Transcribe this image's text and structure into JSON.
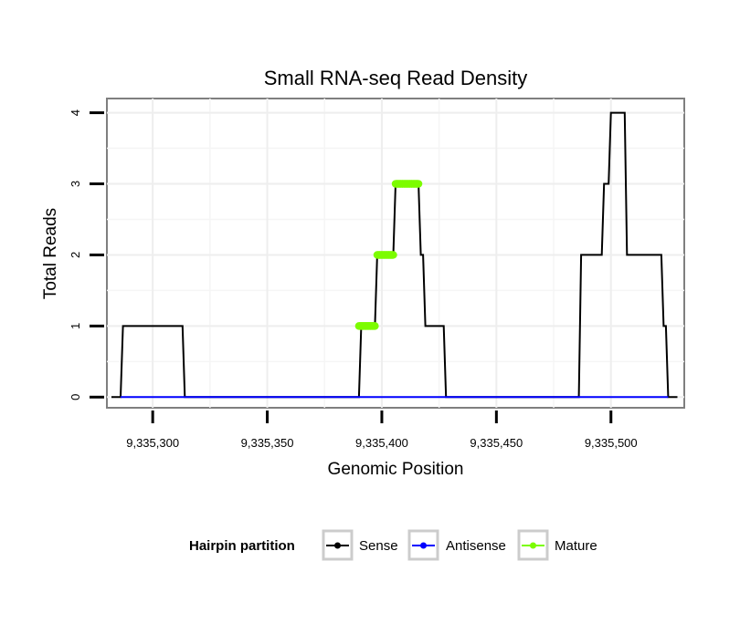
{
  "chart_data": {
    "type": "line",
    "title": "Small RNA-seq Read Density",
    "xlabel": "Genomic Position",
    "ylabel": "Total Reads",
    "xlim": [
      9335280,
      9335532
    ],
    "ylim": [
      -0.15,
      4.2
    ],
    "x_ticks": [
      {
        "value": 9335300,
        "label": "9,335,300"
      },
      {
        "value": 9335350,
        "label": "9,335,350"
      },
      {
        "value": 9335400,
        "label": "9,335,400"
      },
      {
        "value": 9335450,
        "label": "9,335,450"
      },
      {
        "value": 9335500,
        "label": "9,335,500"
      }
    ],
    "y_ticks": [
      {
        "value": 0,
        "label": "0"
      },
      {
        "value": 1,
        "label": "1"
      },
      {
        "value": 2,
        "label": "2"
      },
      {
        "value": 3,
        "label": "3"
      },
      {
        "value": 4,
        "label": "4"
      }
    ],
    "grid": true,
    "legend": {
      "title": "Hairpin partition",
      "position": "bottom",
      "entries": [
        {
          "name": "Sense",
          "color": "#000000"
        },
        {
          "name": "Antisense",
          "color": "#0000ff"
        },
        {
          "name": "Mature",
          "color": "#7cfc00"
        }
      ]
    },
    "series": [
      {
        "name": "Sense",
        "color": "#000000",
        "x": [
          9335282,
          9335286,
          9335287,
          9335313,
          9335314,
          9335390,
          9335391,
          9335397,
          9335398,
          9335405,
          9335406,
          9335416,
          9335417,
          9335418,
          9335419,
          9335427,
          9335428,
          9335486,
          9335487,
          9335496,
          9335497,
          9335499,
          9335500,
          9335506,
          9335507,
          9335522,
          9335523,
          9335524,
          9335525,
          9335529
        ],
        "y": [
          0,
          0,
          1,
          1,
          0,
          0,
          1,
          1,
          2,
          2,
          3,
          3,
          2,
          2,
          1,
          1,
          0,
          0,
          2,
          2,
          3,
          3,
          4,
          4,
          2,
          2,
          1,
          1,
          0,
          0
        ]
      },
      {
        "name": "Antisense",
        "color": "#0000ff",
        "x": [
          9335286,
          9335525
        ],
        "y": [
          0,
          0
        ]
      },
      {
        "name": "Mature",
        "color": "#7cfc00",
        "x": [
          9335390,
          9335391,
          9335392,
          9335393,
          9335394,
          9335395,
          9335396,
          9335397,
          9335398,
          9335399,
          9335400,
          9335401,
          9335402,
          9335403,
          9335404,
          9335405,
          9335406,
          9335407,
          9335408,
          9335409,
          9335410,
          9335411,
          9335412,
          9335413,
          9335414,
          9335415,
          9335416
        ],
        "y": [
          1,
          1,
          1,
          1,
          1,
          1,
          1,
          1,
          2,
          2,
          2,
          2,
          2,
          2,
          2,
          2,
          3,
          3,
          3,
          3,
          3,
          3,
          3,
          3,
          3,
          3,
          3
        ]
      }
    ]
  }
}
